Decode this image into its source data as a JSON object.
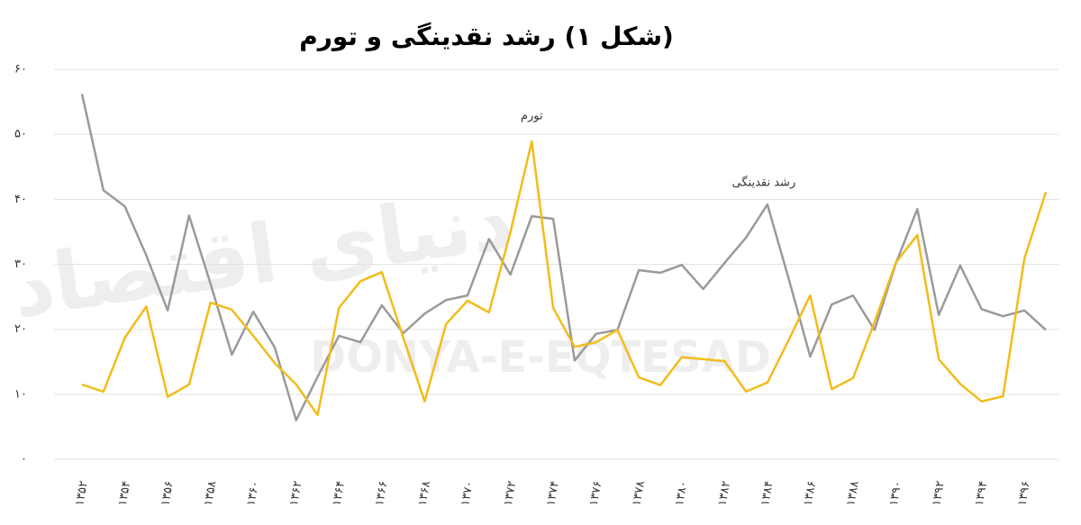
{
  "chart_data": {
    "type": "line",
    "title": "(شکل ۱) رشد نقدینگی و تورم",
    "watermark": [
      "دنیای اقتصاد",
      "DONYA-E-EQTESAD"
    ],
    "categories": [
      "۱۳۵۲",
      null,
      "۱۳۵۴",
      null,
      "۱۳۵۶",
      null,
      "۱۳۵۸",
      null,
      "۱۳۶۰",
      null,
      "۱۳۶۲",
      null,
      "۱۳۶۴",
      null,
      "۱۳۶۶",
      null,
      "۱۳۶۸",
      null,
      "۱۳۷۰",
      null,
      "۱۳۷۲",
      null,
      "۱۳۷۴",
      null,
      "۱۳۷۶",
      null,
      "۱۳۷۸",
      null,
      "۱۳۸۰",
      null,
      "۱۳۸۲",
      null,
      "۱۳۸۴",
      null,
      "۱۳۸۶",
      null,
      "۱۳۸۸",
      null,
      "۱۳۹۰",
      null,
      "۱۳۹۲",
      null,
      "۱۳۹۴",
      null,
      "۱۳۹۶",
      null
    ],
    "series": [
      {
        "name": "رشد نقدینگی",
        "color": "#9a9a9a",
        "values": [
          56.2,
          41.4,
          38.9,
          31.4,
          22.9,
          37.5,
          27.0,
          16.1,
          22.7,
          17.2,
          6.0,
          12.7,
          19.0,
          18.0,
          23.7,
          19.4,
          22.4,
          24.5,
          25.2,
          33.9,
          28.4,
          37.4,
          37.0,
          15.2,
          19.3,
          19.9,
          29.1,
          28.7,
          29.9,
          26.2,
          30.2,
          34.1,
          39.2,
          27.7,
          15.8,
          23.8,
          25.2,
          19.9,
          30.2,
          38.5,
          22.2,
          29.8,
          23.1,
          22.0,
          22.9,
          19.9
        ]
      },
      {
        "name": "تورم",
        "color": "#f2bc1b",
        "values": [
          11.5,
          10.4,
          18.7,
          23.5,
          9.6,
          11.5,
          24.1,
          23.0,
          19.0,
          14.8,
          11.5,
          6.8,
          23.3,
          27.4,
          28.8,
          18.7,
          8.9,
          20.8,
          24.4,
          22.6,
          34.9,
          48.9,
          23.3,
          17.3,
          18.0,
          19.9,
          12.6,
          11.4,
          15.7,
          15.4,
          15.1,
          10.4,
          11.8,
          18.4,
          25.2,
          10.8,
          12.5,
          21.1,
          30.3,
          34.5,
          15.4,
          11.6,
          8.9,
          9.7,
          30.9,
          41.1
        ]
      }
    ],
    "ylim": [
      0,
      60
    ],
    "yticks": [
      {
        "value": 0,
        "label": "۰"
      },
      {
        "value": 10,
        "label": "۱۰"
      },
      {
        "value": 20,
        "label": "۲۰"
      },
      {
        "value": 30,
        "label": "۳۰"
      },
      {
        "value": 40,
        "label": "۴۰"
      },
      {
        "value": 50,
        "label": "۵۰"
      },
      {
        "value": 60,
        "label": "۶۰"
      }
    ],
    "grid": true
  }
}
